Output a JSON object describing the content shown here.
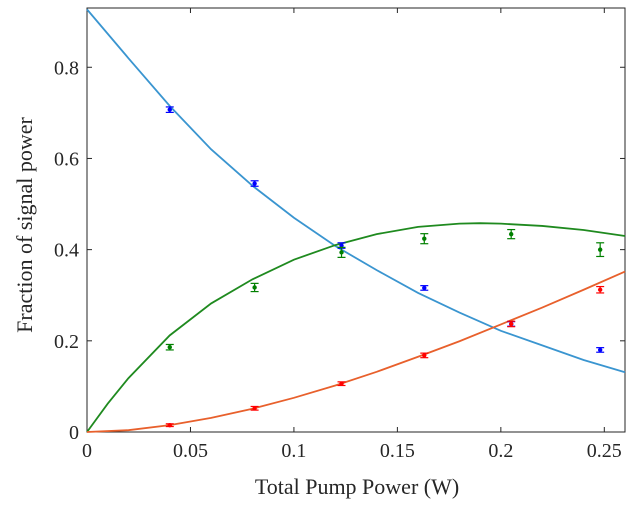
{
  "chart_data": {
    "type": "scatter",
    "title": "",
    "xlabel": "Total Pump Power (W)",
    "ylabel": "Fraction of signal power",
    "xlim": [
      0,
      0.26
    ],
    "ylim": [
      0,
      0.93
    ],
    "x_ticks": [
      0,
      0.05,
      0.1,
      0.15,
      0.2,
      0.25
    ],
    "x_tick_labels": [
      "0",
      "0.05",
      "0.1",
      "0.15",
      "0.2",
      "0.25"
    ],
    "y_ticks": [
      0,
      0.2,
      0.4,
      0.6,
      0.8
    ],
    "y_tick_labels": [
      "0",
      "0.2",
      "0.4",
      "0.6",
      "0.8"
    ],
    "grid": false,
    "legend": "none",
    "series": [
      {
        "color": "#0000ff",
        "fit_color": "#3a95d0",
        "points": [
          {
            "x": 0.04,
            "y": 0.707,
            "err": 0.006
          },
          {
            "x": 0.081,
            "y": 0.545,
            "err": 0.006
          },
          {
            "x": 0.123,
            "y": 0.409,
            "err": 0.006
          },
          {
            "x": 0.163,
            "y": 0.316,
            "err": 0.005
          },
          {
            "x": 0.205,
            "y": 0.237,
            "err": 0.005
          },
          {
            "x": 0.248,
            "y": 0.18,
            "err": 0.005
          }
        ],
        "fit": [
          {
            "x": 0.0,
            "y": 0.927
          },
          {
            "x": 0.02,
            "y": 0.82
          },
          {
            "x": 0.04,
            "y": 0.715
          },
          {
            "x": 0.06,
            "y": 0.62
          },
          {
            "x": 0.08,
            "y": 0.54
          },
          {
            "x": 0.1,
            "y": 0.47
          },
          {
            "x": 0.12,
            "y": 0.408
          },
          {
            "x": 0.14,
            "y": 0.355
          },
          {
            "x": 0.16,
            "y": 0.305
          },
          {
            "x": 0.18,
            "y": 0.262
          },
          {
            "x": 0.2,
            "y": 0.222
          },
          {
            "x": 0.22,
            "y": 0.19
          },
          {
            "x": 0.24,
            "y": 0.158
          },
          {
            "x": 0.26,
            "y": 0.131
          }
        ]
      },
      {
        "color": "#008000",
        "fit_color": "#1f8a1f",
        "points": [
          {
            "x": 0.04,
            "y": 0.186,
            "err": 0.006
          },
          {
            "x": 0.081,
            "y": 0.317,
            "err": 0.009
          },
          {
            "x": 0.123,
            "y": 0.394,
            "err": 0.011
          },
          {
            "x": 0.163,
            "y": 0.424,
            "err": 0.011
          },
          {
            "x": 0.205,
            "y": 0.434,
            "err": 0.01
          },
          {
            "x": 0.248,
            "y": 0.4,
            "err": 0.015
          }
        ],
        "fit": [
          {
            "x": 0.0,
            "y": 0.0
          },
          {
            "x": 0.01,
            "y": 0.062
          },
          {
            "x": 0.02,
            "y": 0.118
          },
          {
            "x": 0.04,
            "y": 0.212
          },
          {
            "x": 0.06,
            "y": 0.282
          },
          {
            "x": 0.08,
            "y": 0.335
          },
          {
            "x": 0.1,
            "y": 0.378
          },
          {
            "x": 0.12,
            "y": 0.41
          },
          {
            "x": 0.14,
            "y": 0.434
          },
          {
            "x": 0.16,
            "y": 0.45
          },
          {
            "x": 0.18,
            "y": 0.457
          },
          {
            "x": 0.19,
            "y": 0.458
          },
          {
            "x": 0.2,
            "y": 0.457
          },
          {
            "x": 0.22,
            "y": 0.452
          },
          {
            "x": 0.24,
            "y": 0.443
          },
          {
            "x": 0.26,
            "y": 0.43
          }
        ]
      },
      {
        "color": "#ff0000",
        "fit_color": "#e8602c",
        "points": [
          {
            "x": 0.04,
            "y": 0.015,
            "err": 0.003
          },
          {
            "x": 0.081,
            "y": 0.052,
            "err": 0.004
          },
          {
            "x": 0.123,
            "y": 0.106,
            "err": 0.004
          },
          {
            "x": 0.163,
            "y": 0.168,
            "err": 0.005
          },
          {
            "x": 0.205,
            "y": 0.237,
            "err": 0.006
          },
          {
            "x": 0.248,
            "y": 0.312,
            "err": 0.007
          }
        ],
        "fit": [
          {
            "x": 0.0,
            "y": 0.0
          },
          {
            "x": 0.02,
            "y": 0.004
          },
          {
            "x": 0.04,
            "y": 0.015
          },
          {
            "x": 0.06,
            "y": 0.031
          },
          {
            "x": 0.08,
            "y": 0.051
          },
          {
            "x": 0.1,
            "y": 0.075
          },
          {
            "x": 0.12,
            "y": 0.102
          },
          {
            "x": 0.14,
            "y": 0.132
          },
          {
            "x": 0.16,
            "y": 0.165
          },
          {
            "x": 0.18,
            "y": 0.199
          },
          {
            "x": 0.2,
            "y": 0.236
          },
          {
            "x": 0.22,
            "y": 0.273
          },
          {
            "x": 0.24,
            "y": 0.312
          },
          {
            "x": 0.26,
            "y": 0.352
          }
        ]
      }
    ]
  }
}
